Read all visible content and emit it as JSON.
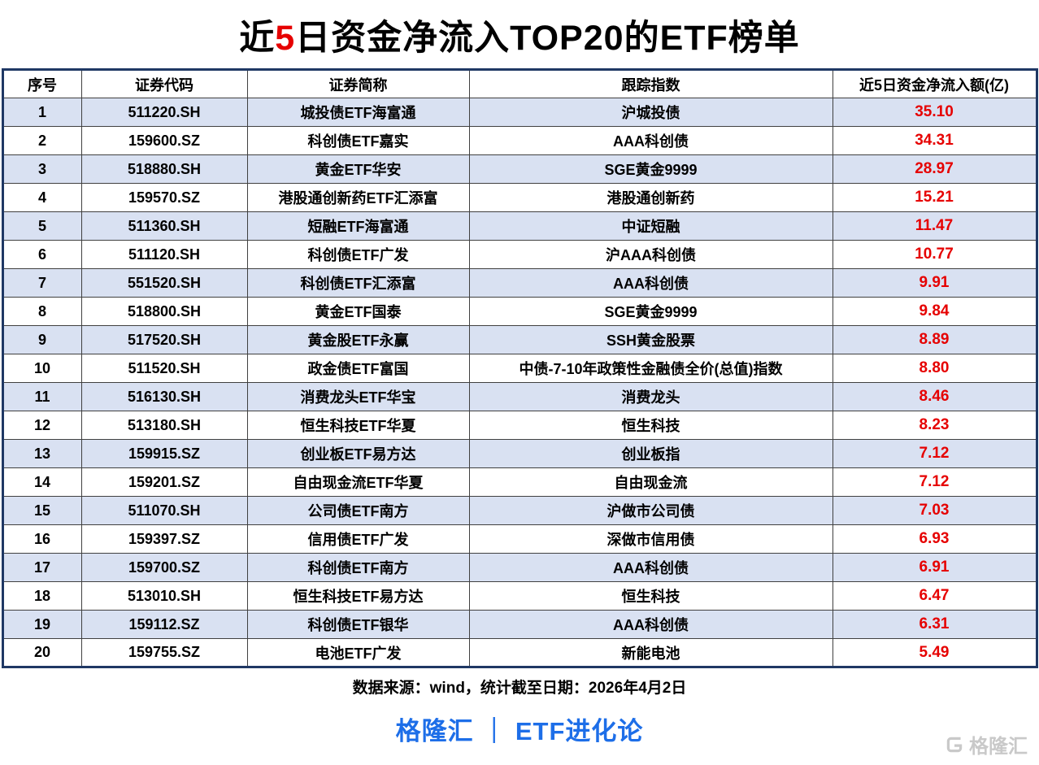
{
  "title": {
    "prefix": "近",
    "highlight": "5",
    "suffix": "日资金净流入TOP20的ETF榜单"
  },
  "chart_data": {
    "type": "table",
    "title": "近5日资金净流入TOP20的ETF榜单",
    "columns": [
      "序号",
      "证券代码",
      "证券简称",
      "跟踪指数",
      "近5日资金净流入额(亿)"
    ],
    "rows": [
      [
        "1",
        "511220.SH",
        "城投债ETF海富通",
        "沪城投债",
        "35.10"
      ],
      [
        "2",
        "159600.SZ",
        "科创债ETF嘉实",
        "AAA科创债",
        "34.31"
      ],
      [
        "3",
        "518880.SH",
        "黄金ETF华安",
        "SGE黄金9999",
        "28.97"
      ],
      [
        "4",
        "159570.SZ",
        "港股通创新药ETF汇添富",
        "港股通创新药",
        "15.21"
      ],
      [
        "5",
        "511360.SH",
        "短融ETF海富通",
        "中证短融",
        "11.47"
      ],
      [
        "6",
        "511120.SH",
        "科创债ETF广发",
        "沪AAA科创债",
        "10.77"
      ],
      [
        "7",
        "551520.SH",
        "科创债ETF汇添富",
        "AAA科创债",
        "9.91"
      ],
      [
        "8",
        "518800.SH",
        "黄金ETF国泰",
        "SGE黄金9999",
        "9.84"
      ],
      [
        "9",
        "517520.SH",
        "黄金股ETF永赢",
        "SSH黄金股票",
        "8.89"
      ],
      [
        "10",
        "511520.SH",
        "政金债ETF富国",
        "中债-7-10年政策性金融债全价(总值)指数",
        "8.80"
      ],
      [
        "11",
        "516130.SH",
        "消费龙头ETF华宝",
        "消费龙头",
        "8.46"
      ],
      [
        "12",
        "513180.SH",
        "恒生科技ETF华夏",
        "恒生科技",
        "8.23"
      ],
      [
        "13",
        "159915.SZ",
        "创业板ETF易方达",
        "创业板指",
        "7.12"
      ],
      [
        "14",
        "159201.SZ",
        "自由现金流ETF华夏",
        "自由现金流",
        "7.12"
      ],
      [
        "15",
        "511070.SH",
        "公司债ETF南方",
        "沪做市公司债",
        "7.03"
      ],
      [
        "16",
        "159397.SZ",
        "信用债ETF广发",
        "深做市信用债",
        "6.93"
      ],
      [
        "17",
        "159700.SZ",
        "科创债ETF南方",
        "AAA科创债",
        "6.91"
      ],
      [
        "18",
        "513010.SH",
        "恒生科技ETF易方达",
        "恒生科技",
        "6.47"
      ],
      [
        "19",
        "159112.SZ",
        "科创债ETF银华",
        "AAA科创债",
        "6.31"
      ],
      [
        "20",
        "159755.SZ",
        "电池ETF广发",
        "新能电池",
        "5.49"
      ]
    ]
  },
  "footer": {
    "source": "数据来源：wind，统计截至日期：2026年4月2日",
    "branding": "格隆汇 ｜ ETF进化论",
    "watermark": "格隆汇"
  },
  "colors": {
    "highlight_red": "#e60000",
    "row_alt": "#d9e1f2",
    "branding_blue": "#1d6ee8",
    "border_navy": "#1f3864"
  }
}
